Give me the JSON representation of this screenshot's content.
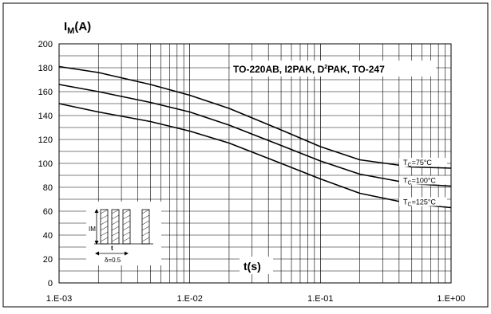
{
  "chart_data": {
    "type": "line",
    "title": "",
    "ylabel_main": "I",
    "ylabel_sub": "M",
    "ylabel_unit": "(A)",
    "xlabel": "t(s)",
    "x_scale": "log",
    "xlim": [
      0.001,
      1
    ],
    "ylim": [
      0,
      200
    ],
    "y_ticks": [
      0,
      20,
      40,
      60,
      80,
      100,
      120,
      140,
      160,
      180,
      200
    ],
    "x_ticks": [
      0.001,
      0.01,
      0.1,
      1
    ],
    "x_tick_labels": [
      "1.E-03",
      "1.E-02",
      "1.E-01",
      "1.E+00"
    ],
    "grid": true,
    "package_label": {
      "pre": "TO-220AB, I2PAK, D",
      "sup": "2",
      "post": "PAK, TO-247"
    },
    "series": [
      {
        "name": "TC=75°C",
        "label_pre": "T",
        "label_sub": "C",
        "label_post": "=75°C",
        "x": [
          0.001,
          0.002,
          0.005,
          0.01,
          0.02,
          0.05,
          0.1,
          0.2,
          0.5,
          1
        ],
        "y": [
          181,
          176,
          166,
          157,
          146,
          128,
          114,
          103,
          97,
          96
        ]
      },
      {
        "name": "TC=100°C",
        "label_pre": "T",
        "label_sub": "C",
        "label_post": "=100°C",
        "x": [
          0.001,
          0.002,
          0.005,
          0.01,
          0.02,
          0.05,
          0.1,
          0.2,
          0.5,
          1
        ],
        "y": [
          166,
          160,
          151,
          143,
          132,
          115,
          102,
          91,
          83,
          81
        ]
      },
      {
        "name": "TC=125°C",
        "label_pre": "T",
        "label_sub": "C",
        "label_post": "=125°C",
        "x": [
          0.001,
          0.002,
          0.005,
          0.01,
          0.02,
          0.05,
          0.1,
          0.2,
          0.5,
          1
        ],
        "y": [
          150,
          143,
          135,
          127,
          117,
          100,
          87,
          75,
          66,
          63
        ]
      }
    ],
    "inset": {
      "im_label": "IM",
      "t_label": "t",
      "delta_label": "δ=0.5"
    }
  }
}
